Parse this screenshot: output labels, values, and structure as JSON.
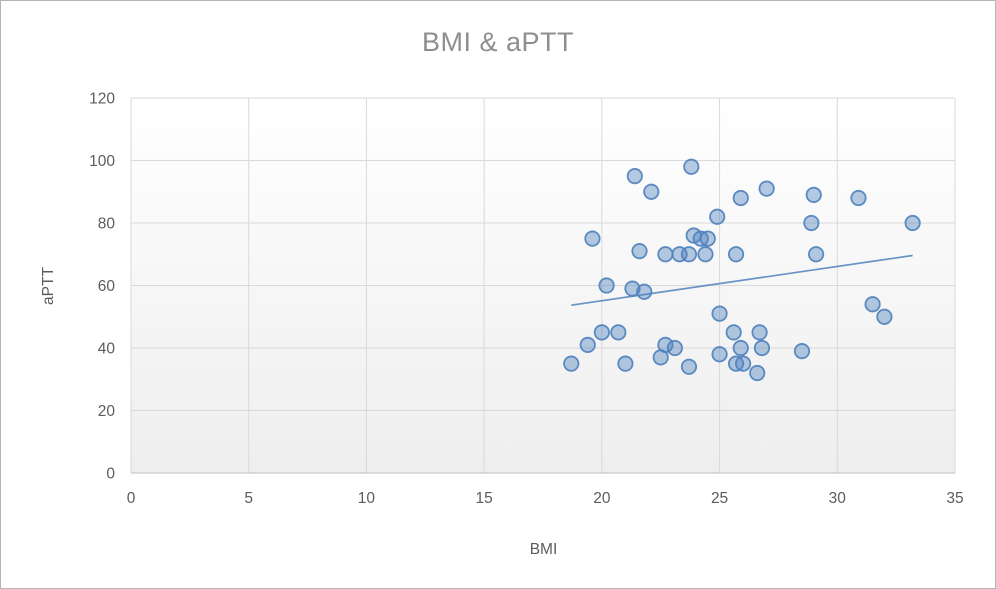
{
  "chart_data": {
    "type": "scatter",
    "title": "BMI & aPTT",
    "xlabel": "BMI",
    "ylabel": "aPTT",
    "xlim": [
      0,
      35
    ],
    "ylim": [
      0,
      120
    ],
    "x_ticks": [
      0,
      5,
      10,
      15,
      20,
      25,
      30,
      35
    ],
    "y_ticks": [
      0,
      20,
      40,
      60,
      80,
      100,
      120
    ],
    "grid": true,
    "legend": "none",
    "points": [
      [
        21.4,
        95
      ],
      [
        22.1,
        90
      ],
      [
        23.8,
        98
      ],
      [
        25.9,
        88
      ],
      [
        27.0,
        91
      ],
      [
        29.0,
        89
      ],
      [
        30.9,
        88
      ],
      [
        24.9,
        82
      ],
      [
        28.9,
        80
      ],
      [
        33.2,
        80
      ],
      [
        19.6,
        75
      ],
      [
        23.9,
        76
      ],
      [
        24.2,
        75
      ],
      [
        24.5,
        75
      ],
      [
        21.6,
        71
      ],
      [
        22.7,
        70
      ],
      [
        23.3,
        70
      ],
      [
        23.7,
        70
      ],
      [
        24.4,
        70
      ],
      [
        25.7,
        70
      ],
      [
        29.1,
        70
      ],
      [
        20.2,
        60
      ],
      [
        21.3,
        59
      ],
      [
        21.8,
        58
      ],
      [
        31.5,
        54
      ],
      [
        32.0,
        50
      ],
      [
        25.0,
        51
      ],
      [
        18.7,
        35
      ],
      [
        19.4,
        41
      ],
      [
        20.0,
        45
      ],
      [
        20.7,
        45
      ],
      [
        21.0,
        35
      ],
      [
        22.7,
        41
      ],
      [
        23.1,
        40
      ],
      [
        22.5,
        37
      ],
      [
        23.7,
        34
      ],
      [
        25.0,
        38
      ],
      [
        25.6,
        45
      ],
      [
        26.7,
        45
      ],
      [
        25.9,
        40
      ],
      [
        26.8,
        40
      ],
      [
        25.7,
        35
      ],
      [
        26.0,
        35
      ],
      [
        26.6,
        32
      ],
      [
        28.5,
        39
      ]
    ],
    "trendline": {
      "x1": 18.7,
      "y1": 53.7,
      "x2": 33.2,
      "y2": 69.6
    },
    "colors": {
      "marker_stroke": "#4e81bd",
      "marker_fill_rgba": "rgba(79,129,189,0.42)",
      "trendline": "#4e81bd",
      "gridline": "#d9d9d9",
      "axis_line": "#c9c9c9",
      "tick_text": "#5c5c5c",
      "title_text": "#8e8e8e",
      "plot_bg_top": "#ffffff",
      "plot_bg_bottom": "#eeeeee"
    }
  }
}
